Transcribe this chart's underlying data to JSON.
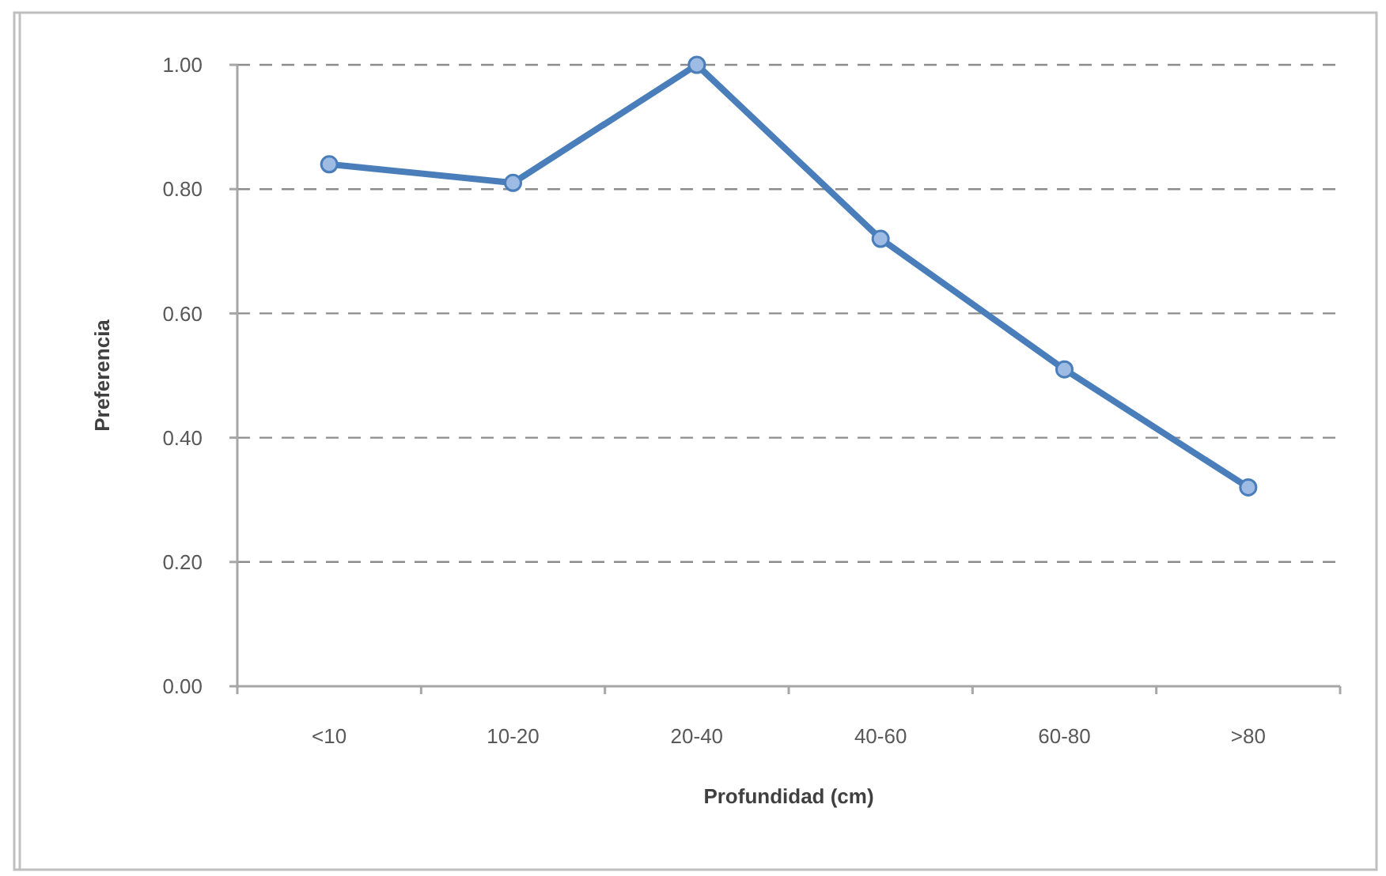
{
  "chart_data": {
    "type": "line",
    "xlabel": "Profundidad (cm)",
    "ylabel": "Preferencia",
    "categories": [
      "<10",
      "10-20",
      "20-40",
      "40-60",
      "60-80",
      ">80"
    ],
    "series": [
      {
        "color": "#4a7ebb",
        "values": [
          0.84,
          0.81,
          1.0,
          0.72,
          0.51,
          0.32
        ]
      }
    ],
    "ylim": [
      0,
      1
    ],
    "yticks": [
      {
        "value": 0,
        "label": "0.00"
      },
      {
        "value": 0.2,
        "label": "0.20"
      },
      {
        "value": 0.4,
        "label": "0.40"
      },
      {
        "value": 0.6,
        "label": "0.60"
      },
      {
        "value": 0.8,
        "label": "0.80"
      },
      {
        "value": 1,
        "label": "1.00"
      }
    ],
    "grid": "y",
    "marker": "circle",
    "line_style": "solid"
  }
}
